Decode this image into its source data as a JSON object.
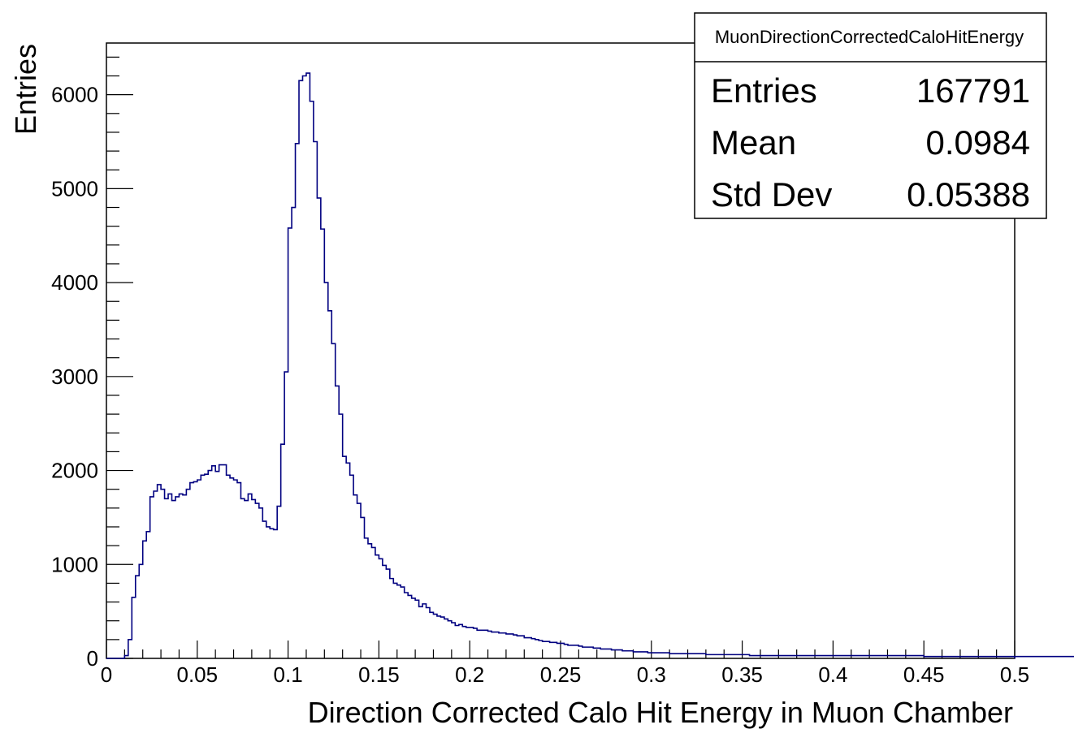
{
  "chart_data": {
    "type": "histogram",
    "title": "",
    "xlabel": "Direction Corrected Calo Hit Energy in Muon Chamber",
    "ylabel": "Entries",
    "xlim": [
      0,
      0.5
    ],
    "ylim": [
      0,
      6550
    ],
    "x_ticks": [
      0,
      0.05,
      0.1,
      0.15,
      0.2,
      0.25,
      0.3,
      0.35,
      0.4,
      0.45,
      0.5
    ],
    "x_tick_labels": [
      "0",
      "0.05",
      "0.1",
      "0.15",
      "0.2",
      "0.25",
      "0.3",
      "0.35",
      "0.4",
      "0.45",
      "0.5"
    ],
    "y_ticks": [
      0,
      1000,
      2000,
      3000,
      4000,
      5000,
      6000
    ],
    "y_tick_labels": [
      "0",
      "1000",
      "2000",
      "3000",
      "4000",
      "5000",
      "6000"
    ],
    "bin_width": 0.002,
    "line_color": "#000080",
    "series": [
      {
        "values": [
          0,
          0,
          0,
          0,
          0,
          30,
          200,
          650,
          880,
          1000,
          1250,
          1350,
          1720,
          1780,
          1850,
          1800,
          1700,
          1750,
          1680,
          1720,
          1750,
          1740,
          1800,
          1870,
          1880,
          1900,
          1950,
          1960,
          2000,
          2050,
          1990,
          2060,
          2060,
          1950,
          1920,
          1900,
          1870,
          1700,
          1680,
          1750,
          1690,
          1650,
          1600,
          1460,
          1400,
          1380,
          1370,
          1620,
          2280,
          3050,
          4580,
          4800,
          5480,
          6150,
          6200,
          6230,
          5930,
          5500,
          4900,
          4570,
          4000,
          3700,
          3350,
          2900,
          2600,
          2150,
          2080,
          1950,
          1740,
          1650,
          1500,
          1280,
          1220,
          1180,
          1100,
          1060,
          990,
          950,
          850,
          800,
          780,
          760,
          700,
          670,
          640,
          620,
          550,
          580,
          540,
          490,
          470,
          450,
          440,
          420,
          400,
          380,
          350,
          360,
          340,
          330,
          330,
          320,
          300,
          300,
          300,
          290,
          280,
          280,
          270,
          270,
          260,
          260,
          250,
          240,
          240,
          220,
          220,
          210,
          200,
          190,
          180,
          180,
          170,
          170,
          160,
          160,
          150,
          140,
          140,
          140,
          130,
          120,
          120,
          120,
          110,
          110,
          100,
          100,
          100,
          90,
          90,
          90,
          80,
          80,
          80,
          70,
          70,
          70,
          70,
          60,
          60,
          60,
          60,
          60,
          60,
          50,
          50,
          50,
          50,
          50,
          50,
          50,
          50,
          50,
          50,
          40,
          40,
          40,
          40,
          40,
          40,
          40,
          40,
          40,
          40,
          40,
          40,
          30,
          30,
          30,
          30,
          30,
          30,
          30,
          30,
          30,
          30,
          30,
          30,
          30,
          30,
          30,
          30,
          30,
          30,
          30,
          30,
          30,
          30,
          30,
          30,
          30,
          30,
          30,
          30,
          30,
          30,
          30,
          30,
          30,
          30,
          30,
          30,
          30,
          30,
          30,
          30,
          30,
          30,
          30,
          30,
          30,
          30,
          30,
          30,
          20,
          20,
          20,
          20,
          20,
          20,
          20,
          20,
          20,
          20,
          20,
          20,
          20,
          20,
          20,
          20,
          20,
          20,
          20,
          20,
          20,
          20,
          20,
          20,
          20,
          20,
          20,
          20,
          20,
          20,
          20,
          20,
          20,
          20,
          20,
          20,
          20,
          20,
          20,
          20,
          20,
          20,
          20,
          20,
          20,
          20,
          20,
          20,
          20,
          20,
          20,
          20,
          20,
          20,
          20,
          20,
          20,
          20,
          20,
          20,
          20,
          20,
          20,
          20,
          20,
          20,
          20,
          20,
          20,
          20,
          20,
          20,
          20,
          20,
          20,
          20,
          20,
          20,
          20,
          20,
          20,
          20,
          20
        ]
      }
    ],
    "stats_box": {
      "title": "MuonDirectionCorrectedCaloHitEnergy",
      "rows": [
        {
          "label": "Entries",
          "value": "167791"
        },
        {
          "label": "Mean",
          "value": "0.0984"
        },
        {
          "label": "Std Dev",
          "value": "0.05388"
        }
      ]
    },
    "grid": false,
    "legend": "top-right"
  }
}
